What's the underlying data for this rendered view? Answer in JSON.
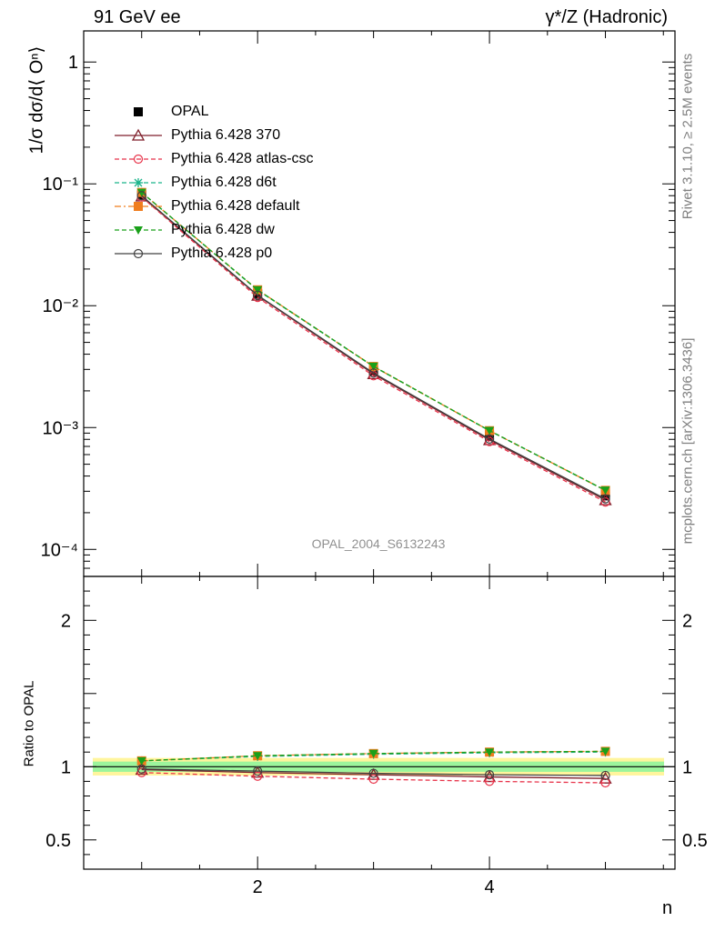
{
  "header": {
    "left": "91 GeV ee",
    "right": "γ*/Z (Hadronic)"
  },
  "side_labels": {
    "rivet": "Rivet 3.1.10, ≥ 2.5M events",
    "source": "mcplots.cern.ch [arXiv:1306.3436]"
  },
  "watermark": "OPAL_2004_S6132243",
  "chart_data": [
    {
      "type": "line",
      "ylabel": "1/σ dσ/d⟨ Oⁿ⟩",
      "xlabel": "n",
      "yscale": "log",
      "xlim": [
        0.5,
        5.6
      ],
      "ylim": [
        6e-05,
        1.8
      ],
      "yticks": [
        {
          "value": 1,
          "label": "1"
        },
        {
          "value": 0.1,
          "label": "10⁻¹"
        },
        {
          "value": 0.01,
          "label": "10⁻²"
        },
        {
          "value": 0.001,
          "label": "10⁻³"
        },
        {
          "value": 0.0001,
          "label": "10⁻⁴"
        }
      ],
      "x": [
        1,
        2,
        3,
        4,
        5
      ],
      "legend_position": "top-left",
      "series": [
        {
          "name": "OPAL",
          "color": "#000000",
          "marker": "square",
          "values": [
            0.081,
            0.0125,
            0.0029,
            0.00085,
            0.000275
          ]
        },
        {
          "name": "Pythia 6.428 370",
          "color": "#7f1f2a",
          "marker": "triangle-open",
          "dash": "solid",
          "values": [
            0.079,
            0.0121,
            0.00275,
            0.00079,
            0.000254
          ]
        },
        {
          "name": "Pythia 6.428 atlas-csc",
          "color": "#e8334a",
          "marker": "circle-open",
          "dash": "dashed",
          "values": [
            0.078,
            0.0117,
            0.00266,
            0.000767,
            0.000245
          ]
        },
        {
          "name": "Pythia 6.428 d6t",
          "color": "#19b38a",
          "marker": "star",
          "dash": "dashed",
          "values": [
            0.085,
            0.0134,
            0.00316,
            0.00094,
            0.000304
          ]
        },
        {
          "name": "Pythia 6.428 default",
          "color": "#f07d1e",
          "marker": "square",
          "dash": "dashdot",
          "values": [
            0.085,
            0.0135,
            0.00317,
            0.000942,
            0.000305
          ]
        },
        {
          "name": "Pythia 6.428 dw",
          "color": "#1aa01a",
          "marker": "triangle-down",
          "dash": "dashed",
          "values": [
            0.085,
            0.0135,
            0.00318,
            0.000945,
            0.000306
          ]
        },
        {
          "name": "Pythia 6.428 p0",
          "color": "#404040",
          "marker": "circle-open",
          "dash": "solid",
          "values": [
            0.08,
            0.0122,
            0.0028,
            0.000805,
            0.00026
          ]
        }
      ]
    },
    {
      "type": "line",
      "ylabel": "Ratio to OPAL",
      "xlabel": "n",
      "xlim": [
        0.5,
        5.6
      ],
      "ylim": [
        0.3,
        2.3
      ],
      "yticks": [
        {
          "value": 0.5,
          "label": "0.5"
        },
        {
          "value": 1,
          "label": "1"
        },
        {
          "value": 2,
          "label": "2"
        }
      ],
      "xticks": [
        {
          "value": 2,
          "label": "2"
        },
        {
          "value": 4,
          "label": "4"
        }
      ],
      "x": [
        1,
        2,
        3,
        4,
        5
      ],
      "band_outer": [
        0.06,
        0.06,
        0.06,
        0.06,
        0.06
      ],
      "band_inner": [
        0.035,
        0.035,
        0.035,
        0.035,
        0.035
      ],
      "series": [
        {
          "name": "Pythia 6.428 370",
          "color": "#7f1f2a",
          "marker": "triangle-open",
          "dash": "solid",
          "values": [
            0.98,
            0.96,
            0.945,
            0.93,
            0.92
          ]
        },
        {
          "name": "Pythia 6.428 atlas-csc",
          "color": "#e8334a",
          "marker": "circle-open",
          "dash": "dashed",
          "values": [
            0.96,
            0.935,
            0.915,
            0.9,
            0.89
          ]
        },
        {
          "name": "Pythia 6.428 d6t",
          "color": "#19b38a",
          "marker": "star",
          "dash": "dashed",
          "values": [
            1.04,
            1.07,
            1.085,
            1.095,
            1.1
          ]
        },
        {
          "name": "Pythia 6.428 default",
          "color": "#f07d1e",
          "marker": "square",
          "dash": "dashdot",
          "values": [
            1.04,
            1.075,
            1.09,
            1.1,
            1.105
          ]
        },
        {
          "name": "Pythia 6.428 dw",
          "color": "#1aa01a",
          "marker": "triangle-down",
          "dash": "dashed",
          "values": [
            1.04,
            1.075,
            1.09,
            1.1,
            1.105
          ]
        },
        {
          "name": "Pythia 6.428 p0",
          "color": "#404040",
          "marker": "circle-open",
          "dash": "solid",
          "values": [
            0.985,
            0.97,
            0.955,
            0.945,
            0.94
          ]
        }
      ]
    }
  ]
}
